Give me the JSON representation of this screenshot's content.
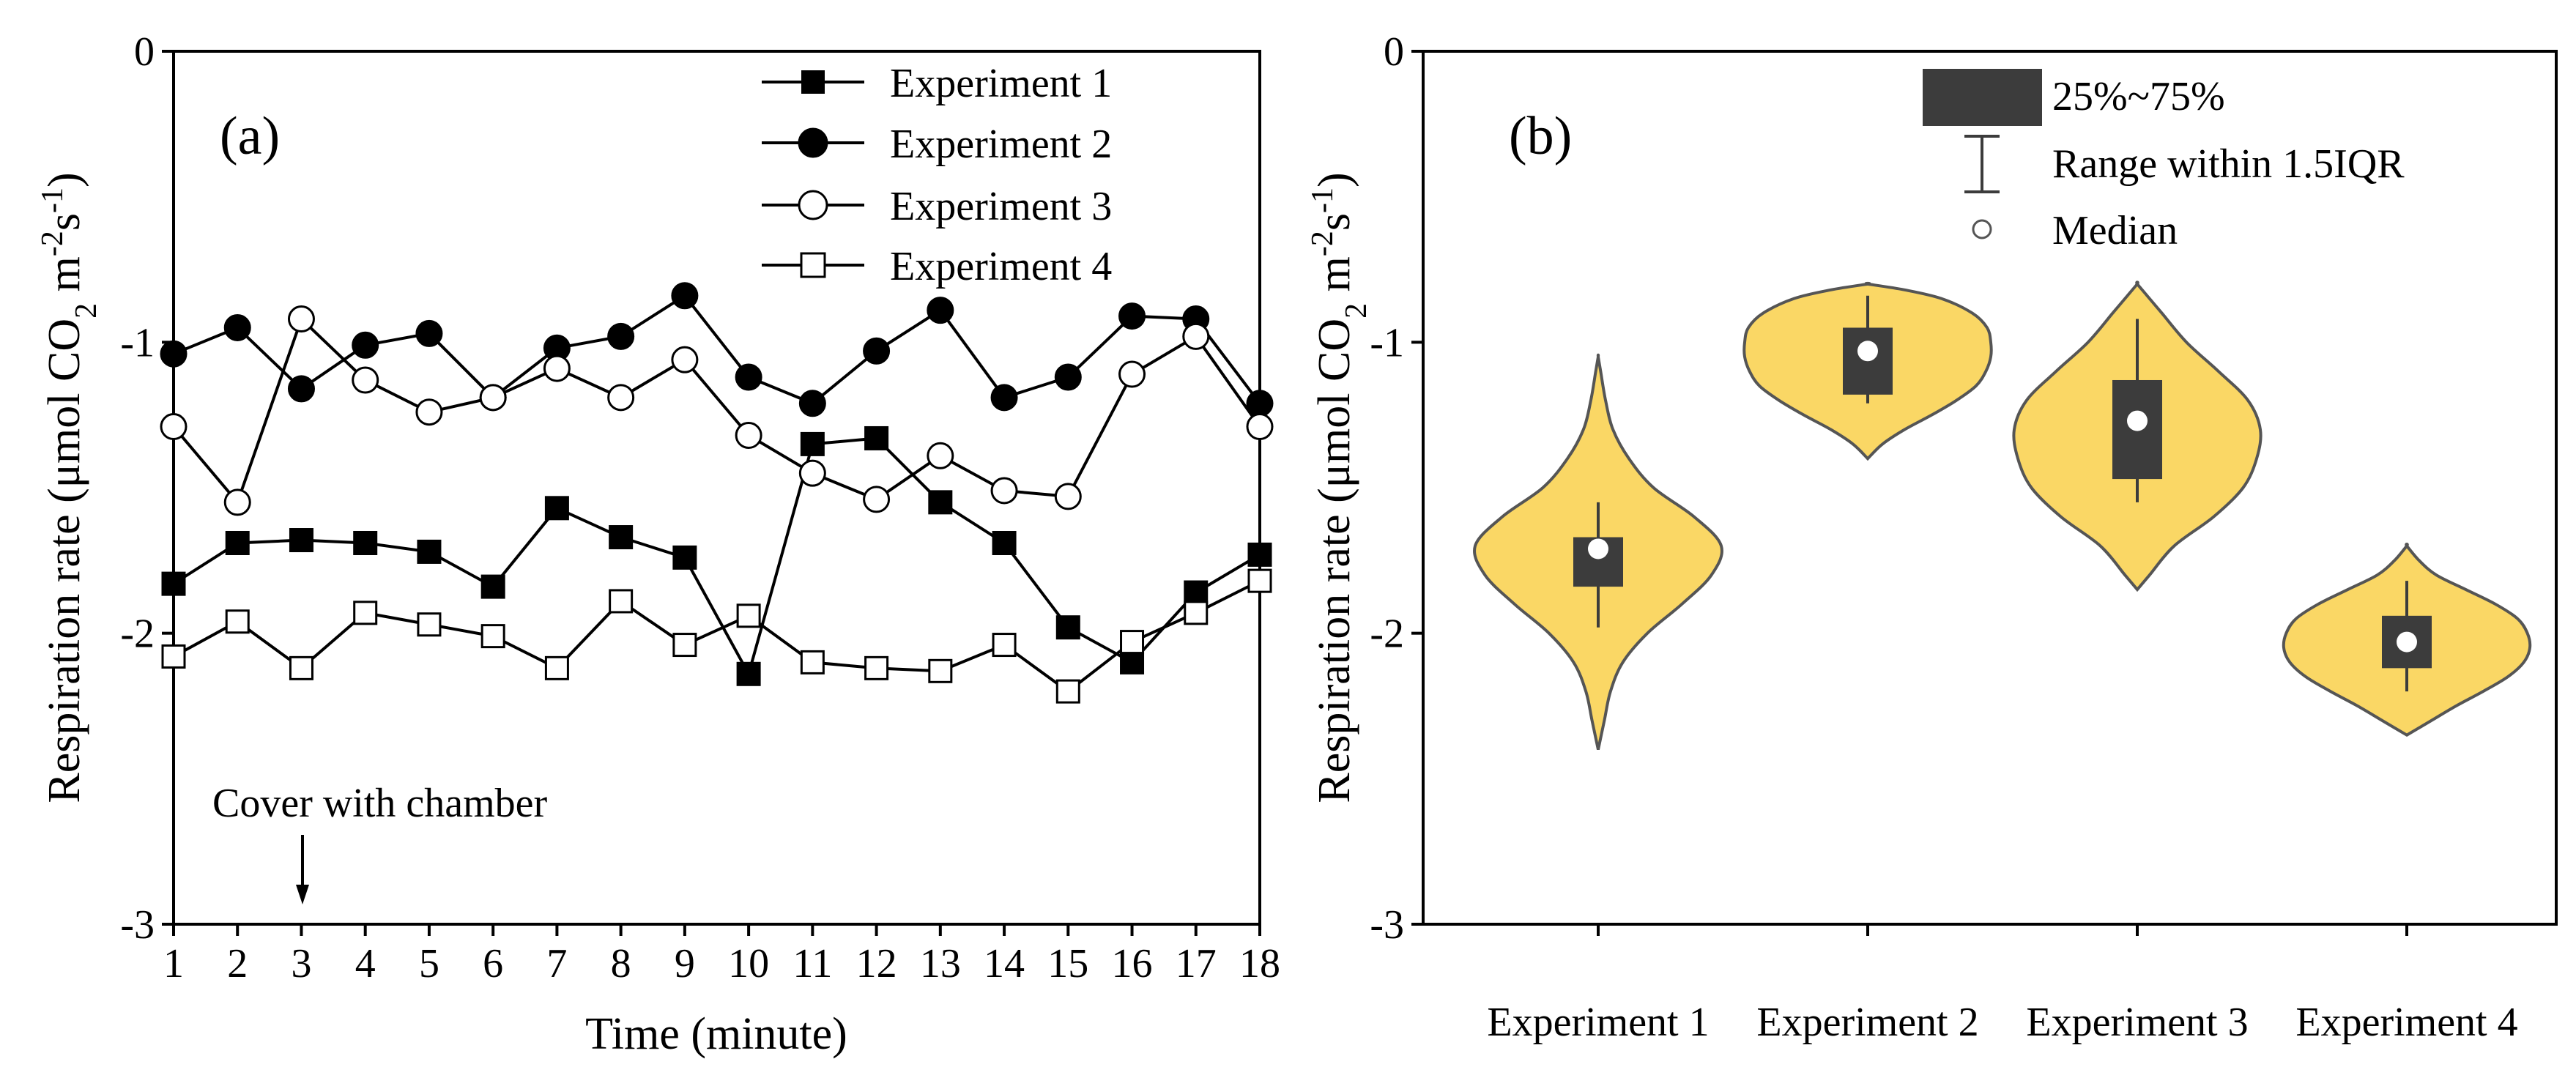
{
  "chart_data": [
    {
      "id": "a",
      "type": "line",
      "panel_label": "(a)",
      "xlabel": "Time (minute)",
      "ylabel_main": "Respiration rate (μmol CO",
      "ylabel_sub": "2",
      "ylabel_unit": " m",
      "ylabel_sup1": "-2",
      "ylabel_s": "s",
      "ylabel_sup2": "-1",
      "ylabel_close": ")",
      "xlim": [
        1,
        18
      ],
      "ylim": [
        -3,
        0
      ],
      "x": [
        1,
        2,
        3,
        4,
        5,
        6,
        7,
        8,
        9,
        10,
        11,
        12,
        13,
        14,
        15,
        16,
        17,
        18
      ],
      "xticks": [
        "1",
        "2",
        "3",
        "4",
        "5",
        "6",
        "7",
        "8",
        "9",
        "10",
        "11",
        "12",
        "13",
        "14",
        "15",
        "16",
        "17",
        "18"
      ],
      "yticks": [
        {
          "value": 0,
          "label": "0"
        },
        {
          "value": -1,
          "label": "-1"
        },
        {
          "value": -2,
          "label": "-2"
        },
        {
          "value": -3,
          "label": "-3"
        }
      ],
      "series": [
        {
          "name": "Experiment 1",
          "marker": "square",
          "filled": true,
          "values": [
            -1.83,
            -1.69,
            -1.68,
            -1.69,
            -1.72,
            -1.84,
            -1.57,
            -1.67,
            -1.74,
            -2.14,
            -1.35,
            -1.33,
            -1.55,
            -1.69,
            -1.98,
            -2.1,
            -1.86,
            -1.73
          ]
        },
        {
          "name": "Experiment 2",
          "marker": "circle",
          "filled": true,
          "values": [
            -1.04,
            -0.95,
            -1.16,
            -1.01,
            -0.97,
            -1.19,
            -1.02,
            -0.98,
            -0.84,
            -1.12,
            -1.21,
            -1.03,
            -0.89,
            -1.19,
            -1.12,
            -0.91,
            -0.92,
            -1.21
          ]
        },
        {
          "name": "Experiment 3",
          "marker": "circle",
          "filled": false,
          "values": [
            -1.29,
            -1.55,
            -0.92,
            -1.13,
            -1.24,
            -1.19,
            -1.09,
            -1.19,
            -1.06,
            -1.32,
            -1.45,
            -1.54,
            -1.39,
            -1.51,
            -1.53,
            -1.11,
            -0.98,
            -1.29
          ]
        },
        {
          "name": "Experiment 4",
          "marker": "square",
          "filled": false,
          "values": [
            -2.08,
            -1.96,
            -2.12,
            -1.93,
            -1.97,
            -2.01,
            -2.12,
            -1.89,
            -2.04,
            -1.94,
            -2.1,
            -2.12,
            -2.13,
            -2.04,
            -2.2,
            -2.03,
            -1.93,
            -1.82
          ]
        }
      ],
      "annotation": {
        "text": "Cover with chamber",
        "x": 3
      }
    },
    {
      "id": "b",
      "type": "violin",
      "panel_label": "(b)",
      "ylabel_main": "Respiration rate (μmol CO",
      "ylabel_sub": "2",
      "ylabel_unit": " m",
      "ylabel_sup1": "-2",
      "ylabel_s": "s",
      "ylabel_sup2": "-1",
      "ylabel_close": ")",
      "ylim": [
        -3,
        0
      ],
      "yticks": [
        {
          "value": 0,
          "label": "0"
        },
        {
          "value": -1,
          "label": "-1"
        },
        {
          "value": -2,
          "label": "-2"
        },
        {
          "value": -3,
          "label": "-3"
        }
      ],
      "colors": {
        "violin_fill": "#FAD765",
        "violin_edge": "#555555",
        "box": "#3c3c3c",
        "median": "#ffffff"
      },
      "legend": {
        "iqr": "25%~75%",
        "range": "Range within 1.5IQR",
        "median": "Median"
      },
      "categories": [
        "Experiment 1",
        "Experiment 2",
        "Experiment 3",
        "Experiment 4"
      ],
      "stats": [
        {
          "median": -1.71,
          "q1": -1.84,
          "q3": -1.67,
          "whisker_low": -1.98,
          "whisker_high": -1.55,
          "kde_range": [
            -2.4,
            -1.05
          ],
          "profile": [
            [
              -2.4,
              0.0
            ],
            [
              -2.3,
              0.05
            ],
            [
              -2.2,
              0.1
            ],
            [
              -2.1,
              0.2
            ],
            [
              -2.0,
              0.4
            ],
            [
              -1.9,
              0.68
            ],
            [
              -1.8,
              0.92
            ],
            [
              -1.7,
              1.0
            ],
            [
              -1.6,
              0.78
            ],
            [
              -1.5,
              0.45
            ],
            [
              -1.4,
              0.25
            ],
            [
              -1.3,
              0.12
            ],
            [
              -1.2,
              0.06
            ],
            [
              -1.1,
              0.02
            ],
            [
              -1.05,
              0.0
            ]
          ]
        },
        {
          "median": -1.03,
          "q1": -1.18,
          "q3": -0.95,
          "whisker_low": -1.21,
          "whisker_high": -0.84,
          "kde_range": [
            -1.4,
            -0.8
          ],
          "profile": [
            [
              -1.4,
              0.0
            ],
            [
              -1.35,
              0.12
            ],
            [
              -1.3,
              0.3
            ],
            [
              -1.25,
              0.52
            ],
            [
              -1.2,
              0.72
            ],
            [
              -1.15,
              0.88
            ],
            [
              -1.1,
              0.96
            ],
            [
              -1.05,
              1.0
            ],
            [
              -1.0,
              1.0
            ],
            [
              -0.95,
              0.97
            ],
            [
              -0.9,
              0.85
            ],
            [
              -0.85,
              0.6
            ],
            [
              -0.82,
              0.3
            ],
            [
              -0.8,
              0.0
            ]
          ]
        },
        {
          "median": -1.27,
          "q1": -1.47,
          "q3": -1.13,
          "whisker_low": -1.55,
          "whisker_high": -0.92,
          "kde_range": [
            -1.85,
            -0.8
          ],
          "profile": [
            [
              -1.85,
              0.0
            ],
            [
              -1.8,
              0.1
            ],
            [
              -1.7,
              0.3
            ],
            [
              -1.6,
              0.62
            ],
            [
              -1.5,
              0.86
            ],
            [
              -1.4,
              0.97
            ],
            [
              -1.3,
              1.0
            ],
            [
              -1.2,
              0.9
            ],
            [
              -1.1,
              0.66
            ],
            [
              -1.0,
              0.4
            ],
            [
              -0.9,
              0.2
            ],
            [
              -0.85,
              0.1
            ],
            [
              -0.8,
              0.0
            ]
          ]
        },
        {
          "median": -2.03,
          "q1": -2.12,
          "q3": -1.94,
          "whisker_low": -2.2,
          "whisker_high": -1.82,
          "kde_range": [
            -2.35,
            -1.7
          ],
          "profile": [
            [
              -2.35,
              0.0
            ],
            [
              -2.3,
              0.2
            ],
            [
              -2.25,
              0.4
            ],
            [
              -2.2,
              0.62
            ],
            [
              -2.15,
              0.82
            ],
            [
              -2.1,
              0.95
            ],
            [
              -2.05,
              1.0
            ],
            [
              -2.0,
              0.98
            ],
            [
              -1.95,
              0.9
            ],
            [
              -1.9,
              0.72
            ],
            [
              -1.85,
              0.48
            ],
            [
              -1.8,
              0.24
            ],
            [
              -1.75,
              0.1
            ],
            [
              -1.7,
              0.0
            ]
          ]
        }
      ]
    }
  ]
}
